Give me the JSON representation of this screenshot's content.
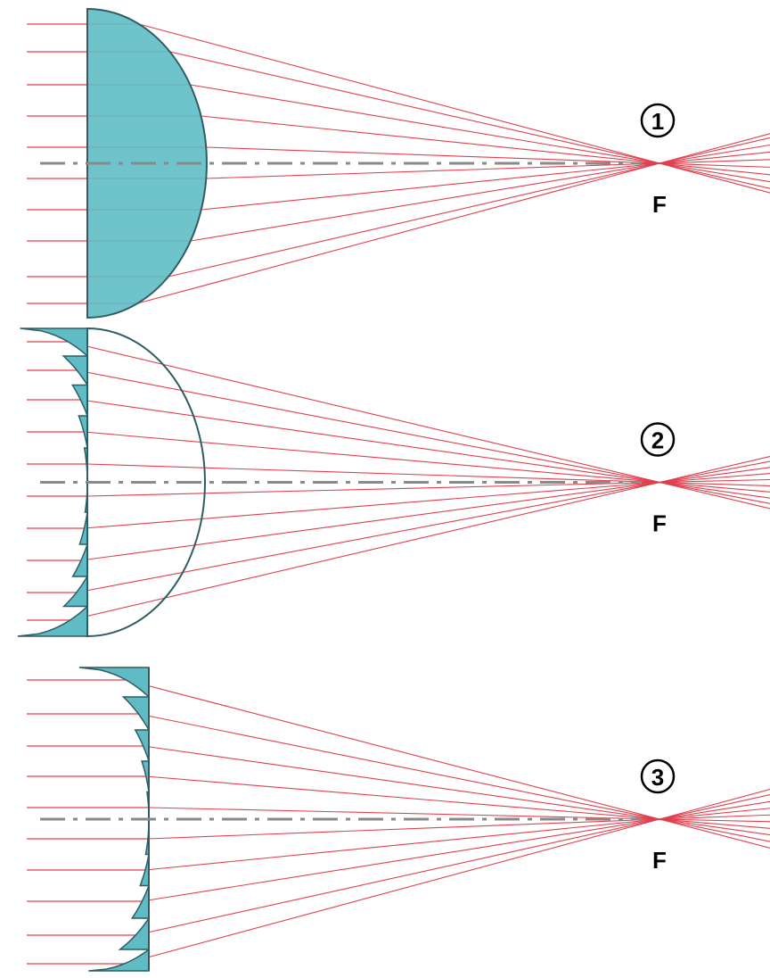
{
  "panels": [
    {
      "label": "1",
      "focus": "F"
    },
    {
      "label": "2",
      "focus": "F"
    },
    {
      "label": "3",
      "focus": "F"
    }
  ]
}
